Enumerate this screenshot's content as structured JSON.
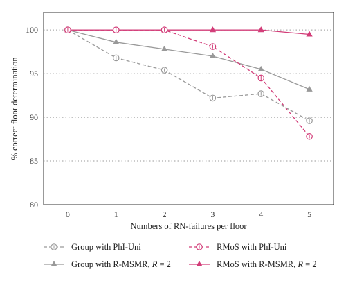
{
  "chart_data": {
    "type": "line",
    "title": "",
    "xlabel": "Numbers of RN-failures per floor",
    "ylabel": "% correct floor determination",
    "x": [
      0,
      1,
      2,
      3,
      4,
      5
    ],
    "xlim": [
      -0.5,
      5.5
    ],
    "ylim": [
      80,
      102
    ],
    "yticks": [
      80,
      85,
      90,
      95,
      100
    ],
    "xticks": [
      0,
      1,
      2,
      3,
      4,
      5
    ],
    "grid": "horizontal-dotted",
    "legend_position": "bottom",
    "series": [
      {
        "name_parts": [
          "Group with PhI-Uni"
        ],
        "values": [
          100,
          96.8,
          95.4,
          92.2,
          92.7,
          89.6
        ],
        "color": "#999999",
        "dash": true,
        "marker": "circle-open",
        "error_bars": true
      },
      {
        "name_parts": [
          "RMoS with PhI-Uni"
        ],
        "values": [
          100,
          100,
          100,
          98.1,
          94.5,
          87.8
        ],
        "color": "#d23c78",
        "dash": true,
        "marker": "circle-open",
        "error_bars": true
      },
      {
        "name_parts": [
          "Group with R-MSMR, ",
          "R",
          " = 2"
        ],
        "values": [
          100,
          98.6,
          97.8,
          97.0,
          95.5,
          93.2
        ],
        "color": "#999999",
        "dash": false,
        "marker": "triangle-filled",
        "error_bars": false
      },
      {
        "name_parts": [
          "RMoS with R-MSMR, ",
          "R",
          " = 2"
        ],
        "values": [
          100,
          100,
          100,
          100,
          100,
          99.5
        ],
        "color": "#d23c78",
        "dash": false,
        "marker": "triangle-filled",
        "error_bars": false
      }
    ]
  }
}
